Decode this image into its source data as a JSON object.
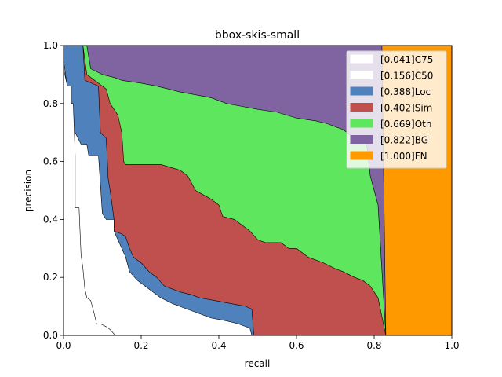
{
  "chart_data": {
    "type": "area",
    "title": "bbox-skis-small",
    "xlabel": "recall",
    "ylabel": "precision",
    "xlim": [
      0,
      1
    ],
    "ylim": [
      0,
      1
    ],
    "x_ticks": [
      "0.0",
      "0.2",
      "0.4",
      "0.6",
      "0.8",
      "1.0"
    ],
    "y_ticks": [
      "0.0",
      "0.2",
      "0.4",
      "0.6",
      "0.8",
      "1.0"
    ],
    "grid": false,
    "legend_position": "top-right",
    "series": [
      {
        "name": "[0.041]C75",
        "color": "#ffffff",
        "points": [
          [
            0.0,
            1.0
          ],
          [
            0.0,
            0.92
          ],
          [
            0.01,
            0.86
          ],
          [
            0.02,
            0.86
          ],
          [
            0.02,
            0.8
          ],
          [
            0.025,
            0.8
          ],
          [
            0.03,
            0.62
          ],
          [
            0.03,
            0.44
          ],
          [
            0.04,
            0.44
          ],
          [
            0.045,
            0.28
          ],
          [
            0.05,
            0.23
          ],
          [
            0.055,
            0.16
          ],
          [
            0.06,
            0.13
          ],
          [
            0.07,
            0.12
          ],
          [
            0.08,
            0.07
          ],
          [
            0.085,
            0.04
          ],
          [
            0.095,
            0.04
          ],
          [
            0.11,
            0.03
          ],
          [
            0.12,
            0.02
          ],
          [
            0.13,
            0.005
          ],
          [
            0.131,
            0.0
          ]
        ]
      },
      {
        "name": "[0.156]C50",
        "color": "#ffffff",
        "points": [
          [
            0.0,
            1.0
          ],
          [
            0.0,
            0.95
          ],
          [
            0.02,
            0.75
          ],
          [
            0.03,
            0.7
          ],
          [
            0.045,
            0.66
          ],
          [
            0.06,
            0.66
          ],
          [
            0.065,
            0.62
          ],
          [
            0.09,
            0.62
          ],
          [
            0.1,
            0.42
          ],
          [
            0.11,
            0.4
          ],
          [
            0.13,
            0.4
          ],
          [
            0.13,
            0.36
          ],
          [
            0.15,
            0.3
          ],
          [
            0.16,
            0.27
          ],
          [
            0.17,
            0.22
          ],
          [
            0.19,
            0.19
          ],
          [
            0.21,
            0.17
          ],
          [
            0.22,
            0.16
          ],
          [
            0.25,
            0.13
          ],
          [
            0.28,
            0.11
          ],
          [
            0.3,
            0.1
          ],
          [
            0.34,
            0.08
          ],
          [
            0.38,
            0.06
          ],
          [
            0.42,
            0.05
          ],
          [
            0.45,
            0.04
          ],
          [
            0.48,
            0.025
          ],
          [
            0.485,
            0.0
          ]
        ]
      },
      {
        "name": "[0.388]Loc",
        "color": "#4f81bd",
        "points": [
          [
            0.0,
            1.0
          ],
          [
            0.05,
            1.0
          ],
          [
            0.055,
            0.88
          ],
          [
            0.09,
            0.86
          ],
          [
            0.095,
            0.7
          ],
          [
            0.11,
            0.68
          ],
          [
            0.115,
            0.54
          ],
          [
            0.12,
            0.5
          ],
          [
            0.13,
            0.4
          ],
          [
            0.13,
            0.36
          ],
          [
            0.15,
            0.35
          ],
          [
            0.16,
            0.34
          ],
          [
            0.17,
            0.3
          ],
          [
            0.18,
            0.27
          ],
          [
            0.2,
            0.25
          ],
          [
            0.22,
            0.22
          ],
          [
            0.24,
            0.2
          ],
          [
            0.26,
            0.17
          ],
          [
            0.28,
            0.16
          ],
          [
            0.3,
            0.15
          ],
          [
            0.33,
            0.14
          ],
          [
            0.35,
            0.13
          ],
          [
            0.39,
            0.12
          ],
          [
            0.41,
            0.115
          ],
          [
            0.43,
            0.11
          ],
          [
            0.47,
            0.1
          ],
          [
            0.485,
            0.09
          ],
          [
            0.49,
            0.0
          ],
          [
            0.83,
            0.0
          ]
        ]
      },
      {
        "name": "[0.402]Sim",
        "color": "#c0504d",
        "points": [
          [
            0.0,
            1.0
          ],
          [
            0.05,
            1.0
          ],
          [
            0.06,
            0.9
          ],
          [
            0.11,
            0.85
          ],
          [
            0.12,
            0.8
          ],
          [
            0.14,
            0.76
          ],
          [
            0.15,
            0.7
          ],
          [
            0.155,
            0.6
          ],
          [
            0.16,
            0.59
          ],
          [
            0.18,
            0.59
          ],
          [
            0.2,
            0.59
          ],
          [
            0.25,
            0.59
          ],
          [
            0.3,
            0.57
          ],
          [
            0.32,
            0.55
          ],
          [
            0.34,
            0.5
          ],
          [
            0.38,
            0.47
          ],
          [
            0.4,
            0.45
          ],
          [
            0.41,
            0.41
          ],
          [
            0.44,
            0.4
          ],
          [
            0.46,
            0.38
          ],
          [
            0.48,
            0.36
          ],
          [
            0.5,
            0.33
          ],
          [
            0.52,
            0.32
          ],
          [
            0.56,
            0.32
          ],
          [
            0.58,
            0.3
          ],
          [
            0.6,
            0.3
          ],
          [
            0.63,
            0.27
          ],
          [
            0.65,
            0.26
          ],
          [
            0.67,
            0.25
          ],
          [
            0.7,
            0.23
          ],
          [
            0.72,
            0.22
          ],
          [
            0.75,
            0.2
          ],
          [
            0.77,
            0.19
          ],
          [
            0.79,
            0.17
          ],
          [
            0.8,
            0.15
          ],
          [
            0.81,
            0.13
          ],
          [
            0.83,
            0.0
          ]
        ]
      },
      {
        "name": "[0.669]Oth",
        "color": "#5ee65e",
        "points": [
          [
            0.0,
            1.0
          ],
          [
            0.06,
            1.0
          ],
          [
            0.07,
            0.92
          ],
          [
            0.1,
            0.9
          ],
          [
            0.13,
            0.89
          ],
          [
            0.15,
            0.88
          ],
          [
            0.2,
            0.87
          ],
          [
            0.24,
            0.86
          ],
          [
            0.27,
            0.85
          ],
          [
            0.3,
            0.84
          ],
          [
            0.34,
            0.83
          ],
          [
            0.38,
            0.82
          ],
          [
            0.42,
            0.8
          ],
          [
            0.46,
            0.79
          ],
          [
            0.5,
            0.78
          ],
          [
            0.55,
            0.77
          ],
          [
            0.6,
            0.75
          ],
          [
            0.65,
            0.74
          ],
          [
            0.68,
            0.73
          ],
          [
            0.7,
            0.72
          ],
          [
            0.72,
            0.71
          ],
          [
            0.74,
            0.69
          ],
          [
            0.76,
            0.68
          ],
          [
            0.78,
            0.67
          ],
          [
            0.79,
            0.55
          ],
          [
            0.8,
            0.5
          ],
          [
            0.81,
            0.45
          ],
          [
            0.83,
            0.0
          ]
        ]
      },
      {
        "name": "[0.822]BG",
        "color": "#8064a2",
        "points": [
          [
            0.0,
            1.0
          ],
          [
            0.82,
            1.0
          ],
          [
            0.83,
            0.0
          ]
        ]
      },
      {
        "name": "[1.000]FN",
        "color": "#ff9900",
        "points": [
          [
            0.0,
            1.0
          ],
          [
            1.0,
            1.0
          ],
          [
            1.0,
            0.0
          ]
        ]
      }
    ]
  }
}
